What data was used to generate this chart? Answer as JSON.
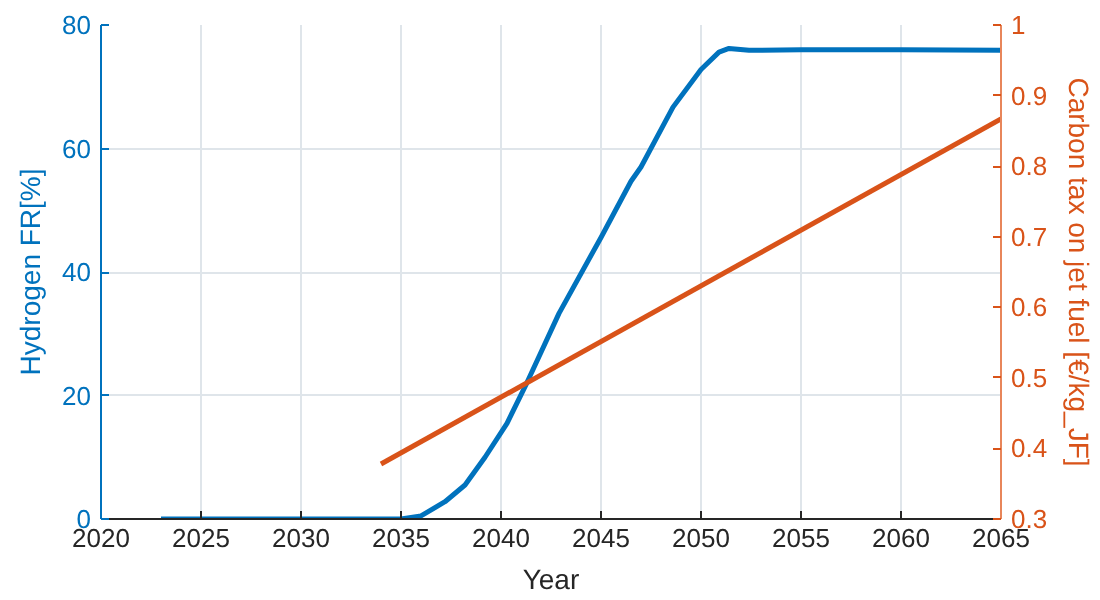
{
  "chart_data": {
    "type": "line",
    "xlabel": "Year",
    "ylabel": "Hydrogen FR[%]",
    "y2label": "Carbon tax on jet fuel [€/kg_JF]",
    "xlim": [
      2020,
      2065
    ],
    "xticks": [
      2020,
      2025,
      2030,
      2035,
      2040,
      2045,
      2050,
      2055,
      2060,
      2065
    ],
    "ylim": [
      0,
      80
    ],
    "yticks": [
      0,
      20,
      40,
      60,
      80
    ],
    "y2lim": [
      0.3,
      1
    ],
    "y2ticks": [
      0.3,
      0.4,
      0.5,
      0.6,
      0.7,
      0.8,
      0.9,
      1
    ],
    "grid": true,
    "marker": "none",
    "line_style": "solid",
    "series": [
      {
        "color": "#0072bd",
        "x": [
          2023,
          2035,
          2036,
          2037.2,
          2038.2,
          2039.2,
          2040.3,
          2041.3,
          2042.9,
          2045,
          2046.5,
          2047,
          2048.6,
          2050,
          2050.9,
          2051.4,
          2052.4,
          2055,
          2060,
          2065
        ],
        "values": [
          0,
          0,
          0.5,
          2.8,
          5.5,
          10,
          15.5,
          22.1,
          33.3,
          45.6,
          54.7,
          57,
          66.7,
          72.8,
          75.6,
          76.2,
          75.9,
          76,
          76,
          75.9
        ]
      },
      {
        "color": "#d95319",
        "axis": "y2",
        "x": [
          2034,
          2065
        ],
        "values": [
          0.378,
          0.867
        ]
      }
    ]
  }
}
